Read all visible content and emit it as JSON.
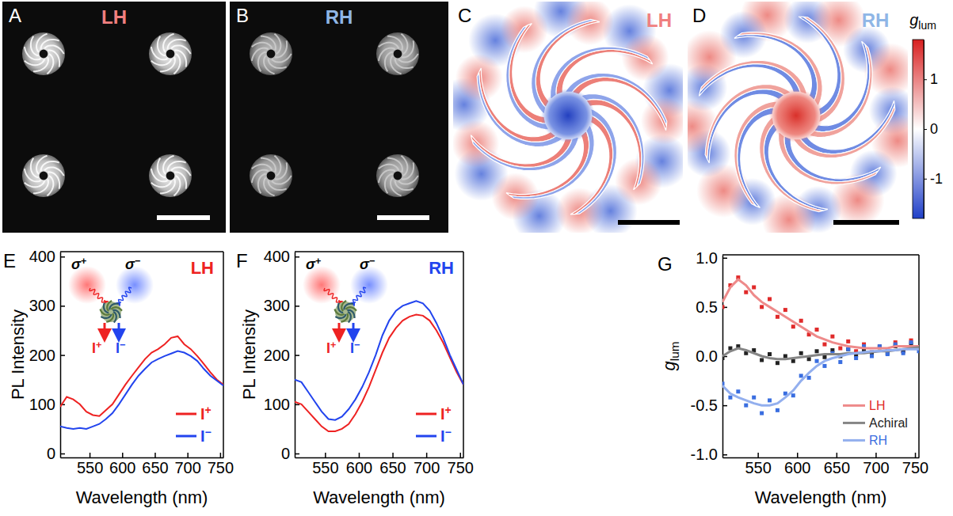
{
  "chart_data": [
    {
      "type": "image",
      "label": "A",
      "title": "LH",
      "color": "#f07f7f"
    },
    {
      "type": "image",
      "label": "B",
      "title": "RH",
      "color": "#8fb6e6"
    },
    {
      "type": "map",
      "label": "C",
      "title": "LH",
      "color": "#f07f7f"
    },
    {
      "type": "map",
      "label": "D",
      "title": "RH",
      "color": "#8fb6e6",
      "colorbar": {
        "title": "glum",
        "range": [
          -1.8,
          1.8
        ],
        "ticks": [
          1,
          0,
          -1
        ]
      }
    },
    {
      "type": "line",
      "label": "E",
      "title": "LH",
      "color": "#ee2222",
      "xlabel": "Wavelength (nm)",
      "ylabel": "PL Intensity",
      "x": [
        505,
        515,
        525,
        535,
        545,
        555,
        565,
        575,
        585,
        595,
        605,
        615,
        625,
        635,
        645,
        655,
        665,
        675,
        685,
        695,
        705,
        715,
        725,
        735,
        745,
        755
      ],
      "xlim": [
        505,
        755
      ],
      "xticks": [
        550,
        600,
        650,
        700,
        750
      ],
      "ylim": [
        -8,
        410
      ],
      "yticks": [
        0,
        100,
        200,
        300,
        400
      ],
      "legend": "lower right",
      "annotations": [
        "σ+",
        "σ−",
        "I+",
        "I−"
      ],
      "series": [
        {
          "name": "I+",
          "color": "#ee2222",
          "values": [
            95,
            115,
            110,
            100,
            85,
            78,
            76,
            88,
            100,
            120,
            140,
            158,
            175,
            192,
            205,
            212,
            222,
            235,
            238,
            222,
            212,
            198,
            182,
            165,
            150,
            140
          ]
        },
        {
          "name": "I−",
          "color": "#2244ee",
          "values": [
            55,
            52,
            50,
            52,
            50,
            55,
            60,
            70,
            82,
            100,
            120,
            140,
            158,
            172,
            185,
            192,
            198,
            203,
            208,
            205,
            198,
            188,
            172,
            158,
            148,
            138
          ]
        }
      ]
    },
    {
      "type": "line",
      "label": "F",
      "title": "RH",
      "color": "#2244ee",
      "xlabel": "Wavelength (nm)",
      "ylabel": "PL Intensity",
      "x": [
        505,
        515,
        525,
        535,
        545,
        555,
        565,
        575,
        585,
        595,
        605,
        615,
        625,
        635,
        645,
        655,
        665,
        675,
        685,
        695,
        705,
        715,
        725,
        735,
        745,
        755
      ],
      "xlim": [
        505,
        755
      ],
      "xticks": [
        550,
        600,
        650,
        700,
        750
      ],
      "ylim": [
        -8,
        410
      ],
      "yticks": [
        0,
        100,
        200,
        300,
        400
      ],
      "legend": "lower right",
      "annotations": [
        "σ+",
        "σ−",
        "I+",
        "I−"
      ],
      "series": [
        {
          "name": "I+",
          "color": "#ee2222",
          "values": [
            105,
            100,
            85,
            70,
            55,
            45,
            45,
            50,
            60,
            80,
            105,
            135,
            170,
            205,
            235,
            255,
            270,
            278,
            282,
            280,
            270,
            250,
            225,
            195,
            165,
            140
          ]
        },
        {
          "name": "I−",
          "color": "#2244ee",
          "values": [
            150,
            145,
            125,
            105,
            85,
            70,
            68,
            75,
            90,
            110,
            135,
            165,
            200,
            240,
            270,
            290,
            300,
            305,
            310,
            305,
            290,
            265,
            235,
            200,
            170,
            140
          ]
        }
      ]
    },
    {
      "type": "scatter",
      "label": "G",
      "xlabel": "Wavelength (nm)",
      "ylabel": "glum",
      "x": [
        505,
        515,
        525,
        535,
        545,
        555,
        565,
        575,
        585,
        595,
        605,
        615,
        625,
        635,
        645,
        655,
        665,
        675,
        685,
        695,
        705,
        715,
        725,
        735,
        745,
        755
      ],
      "xlim": [
        505,
        755
      ],
      "xticks": [
        550,
        600,
        650,
        700,
        750
      ],
      "ylim": [
        -1.03,
        1.03
      ],
      "yticks": [
        {
          "value": -1,
          "label": "-1.0"
        },
        -0.5,
        {
          "value": 0,
          "label": "0.0"
        },
        0.5,
        {
          "value": 1,
          "label": "1.0"
        }
      ],
      "legend": "lower right",
      "marker": "square",
      "series": [
        {
          "name": "LH",
          "color": "#e02a2a",
          "values": [
            0.5,
            0.72,
            0.8,
            0.65,
            0.7,
            0.5,
            0.58,
            0.4,
            0.47,
            0.3,
            0.36,
            0.22,
            0.27,
            0.12,
            0.2,
            0.08,
            0.15,
            0.05,
            0.12,
            0.04,
            0.1,
            0.06,
            0.14,
            0.05,
            0.16,
            0.08
          ],
          "fit": [
            0.55,
            0.7,
            0.78,
            0.72,
            0.62,
            0.55,
            0.5,
            0.45,
            0.4,
            0.35,
            0.3,
            0.25,
            0.2,
            0.17,
            0.14,
            0.12,
            0.1,
            0.09,
            0.08,
            0.08,
            0.08,
            0.08,
            0.1,
            0.1,
            0.1,
            0.1
          ]
        },
        {
          "name": "Achiral",
          "color": "#222222",
          "values": [
            -0.02,
            0.08,
            0.1,
            0.03,
            0.06,
            -0.04,
            0.02,
            -0.07,
            0.0,
            -0.05,
            0.03,
            -0.03,
            0.05,
            -0.01,
            0.06,
            0.0,
            0.07,
            0.01,
            0.06,
            0.02,
            0.09,
            0.03,
            0.1,
            0.05,
            0.12,
            0.08
          ],
          "fit": [
            0.0,
            0.05,
            0.08,
            0.06,
            0.03,
            0.0,
            -0.02,
            -0.03,
            -0.03,
            -0.02,
            -0.01,
            0.0,
            0.01,
            0.02,
            0.02,
            0.02,
            0.03,
            0.03,
            0.03,
            0.04,
            0.05,
            0.05,
            0.06,
            0.07,
            0.08,
            0.09
          ]
        },
        {
          "name": "RH",
          "color": "#3a6ee0",
          "values": [
            -0.28,
            -0.42,
            -0.36,
            -0.5,
            -0.42,
            -0.58,
            -0.45,
            -0.55,
            -0.38,
            -0.4,
            -0.2,
            -0.22,
            -0.05,
            -0.1,
            0.03,
            -0.06,
            0.07,
            -0.02,
            0.1,
            0.0,
            0.1,
            0.02,
            0.12,
            0.03,
            0.14,
            0.05
          ],
          "fit": [
            -0.3,
            -0.38,
            -0.42,
            -0.45,
            -0.48,
            -0.5,
            -0.5,
            -0.48,
            -0.42,
            -0.35,
            -0.25,
            -0.17,
            -0.1,
            -0.05,
            -0.02,
            0.0,
            0.02,
            0.03,
            0.04,
            0.05,
            0.05,
            0.06,
            0.06,
            0.07,
            0.07,
            0.07
          ]
        }
      ]
    }
  ]
}
